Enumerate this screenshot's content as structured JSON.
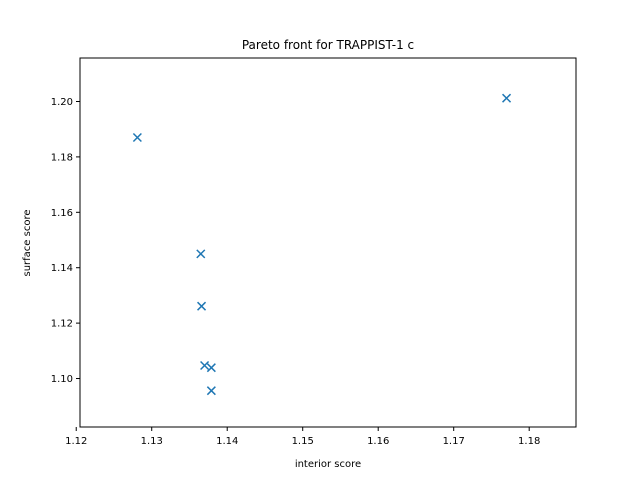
{
  "chart_data": {
    "type": "scatter",
    "title": "Pareto front for TRAPPIST-1 c",
    "xlabel": "interior score",
    "ylabel": "surface score",
    "marker": "x",
    "color": "#1f77b4",
    "xlim": [
      1.1205,
      1.1862
    ],
    "ylim": [
      1.0825,
      1.2157
    ],
    "xticks": [
      1.12,
      1.13,
      1.14,
      1.15,
      1.16,
      1.17,
      1.18
    ],
    "xtick_labels": [
      "1.12",
      "1.13",
      "1.14",
      "1.15",
      "1.16",
      "1.17",
      "1.18"
    ],
    "yticks": [
      1.1,
      1.12,
      1.14,
      1.16,
      1.18,
      1.2
    ],
    "ytick_labels": [
      "1.10",
      "1.12",
      "1.14",
      "1.16",
      "1.18",
      "1.20"
    ],
    "grid": false,
    "points": [
      {
        "x": 1.1281,
        "y": 1.187
      },
      {
        "x": 1.177,
        "y": 1.2012
      },
      {
        "x": 1.1365,
        "y": 1.145
      },
      {
        "x": 1.1366,
        "y": 1.1261
      },
      {
        "x": 1.137,
        "y": 1.1047
      },
      {
        "x": 1.1379,
        "y": 1.1039
      },
      {
        "x": 1.1379,
        "y": 1.0956
      }
    ]
  }
}
